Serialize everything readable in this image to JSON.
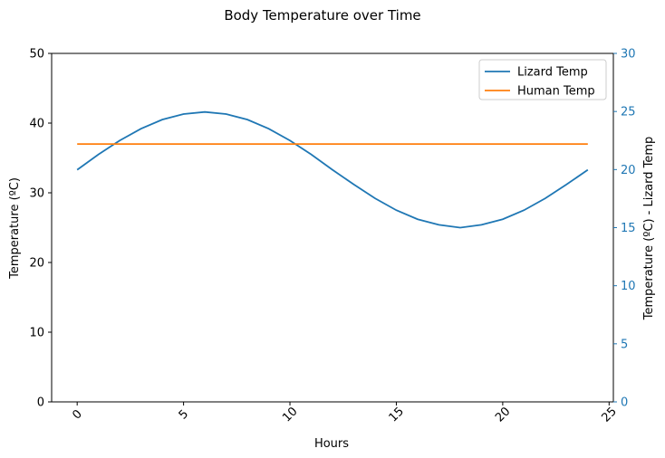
{
  "chart_data": {
    "type": "line",
    "title": "Body Temperature over Time",
    "xlabel": "Hours",
    "ylabel": "Temperature (ºC)",
    "y2label": "Temperature (ºC) - Lizard Temp",
    "xlim": [
      -1.2,
      25.2
    ],
    "ylim": [
      0,
      50
    ],
    "y2lim": [
      0,
      30
    ],
    "xticks": [
      0,
      5,
      10,
      15,
      20,
      25
    ],
    "yticks": [
      0,
      10,
      20,
      30,
      40,
      50
    ],
    "y2ticks": [
      0,
      5,
      10,
      15,
      20,
      25,
      30
    ],
    "x_tick_rotation": 45,
    "legend_position": "top-right",
    "series": [
      {
        "name": "Lizard Temp",
        "color": "#1f77b4",
        "x": [
          0,
          1,
          2,
          3,
          4,
          5,
          6,
          7,
          8,
          9,
          10,
          11,
          12,
          13,
          14,
          15,
          16,
          17,
          18,
          19,
          20,
          21,
          22,
          23,
          24
        ],
        "values": [
          33.3,
          35.5,
          37.5,
          39.2,
          40.5,
          41.3,
          41.6,
          41.3,
          40.5,
          39.2,
          37.5,
          35.5,
          33.3,
          31.2,
          29.2,
          27.5,
          26.2,
          25.4,
          25.0,
          25.4,
          26.2,
          27.5,
          29.2,
          31.2,
          33.3
        ]
      },
      {
        "name": "Human Temp",
        "color": "#ff7f0e",
        "x": [
          0,
          1,
          2,
          3,
          4,
          5,
          6,
          7,
          8,
          9,
          10,
          11,
          12,
          13,
          14,
          15,
          16,
          17,
          18,
          19,
          20,
          21,
          22,
          23,
          24
        ],
        "values": [
          37,
          37,
          37,
          37,
          37,
          37,
          37,
          37,
          37,
          37,
          37,
          37,
          37,
          37,
          37,
          37,
          37,
          37,
          37,
          37,
          37,
          37,
          37,
          37,
          37
        ]
      }
    ],
    "right_axis_color": "#1f77b4"
  }
}
